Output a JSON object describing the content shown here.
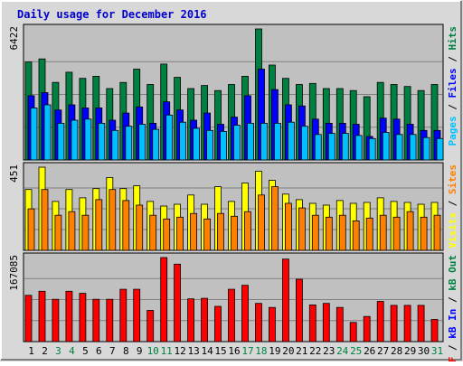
{
  "chart_data": {
    "type": "bar",
    "title": "Daily usage for December 2016",
    "colors": {
      "background": "#d8d8d8",
      "plot": "#c0c0c0",
      "title": "#0000cc",
      "pages": "#00c0ff",
      "files": "#0000ff",
      "hits": "#008040",
      "visits": "#ffff00",
      "sites": "#ff8000",
      "kbytes": "#ff0000",
      "weekend_day": "#008040",
      "weekday": "#000000"
    },
    "days": [
      "1",
      "2",
      "3",
      "4",
      "5",
      "6",
      "7",
      "8",
      "9",
      "10",
      "11",
      "12",
      "13",
      "14",
      "15",
      "16",
      "17",
      "18",
      "19",
      "20",
      "21",
      "22",
      "23",
      "24",
      "25",
      "26",
      "27",
      "28",
      "29",
      "30",
      "31"
    ],
    "weekend_days": [
      "3",
      "4",
      "10",
      "11",
      "17",
      "18",
      "24",
      "25",
      "31"
    ],
    "panels": [
      {
        "id": "hits",
        "ymax": 6422,
        "ymax_label": "6422",
        "legend": [
          {
            "text": "Pages",
            "color": "#00c0ff"
          },
          {
            "text": " / ",
            "color": "#000000"
          },
          {
            "text": "Files",
            "color": "#0000ff"
          },
          {
            "text": " / ",
            "color": "#000000"
          },
          {
            "text": "Hits",
            "color": "#008040"
          }
        ],
        "series": [
          {
            "name": "Hits",
            "color": "#008040",
            "values": [
              4800,
              4950,
              3800,
              4300,
              4000,
              4100,
              3500,
              3800,
              4450,
              3700,
              4700,
              4050,
              3500,
              3650,
              3400,
              3700,
              4100,
              6422,
              4650,
              4000,
              3700,
              3750,
              3500,
              3500,
              3400,
              3100,
              3800,
              3700,
              3600,
              3400,
              3700
            ]
          },
          {
            "name": "Files",
            "color": "#0000ff",
            "values": [
              3150,
              3300,
              2450,
              2700,
              2550,
              2550,
              1950,
              2300,
              2600,
              1800,
              2850,
              2450,
              1950,
              2300,
              1750,
              2100,
              3150,
              4450,
              3450,
              2700,
              2650,
              2000,
              1800,
              1800,
              1750,
              1150,
              2050,
              2000,
              1750,
              1450,
              1450
            ]
          },
          {
            "name": "Pages",
            "color": "#00c0ff",
            "values": [
              2550,
              2700,
              1800,
              1950,
              2000,
              1800,
              1450,
              1650,
              1750,
              1500,
              2200,
              1850,
              1550,
              1450,
              1400,
              1700,
              1800,
              1800,
              1800,
              1850,
              1650,
              1250,
              1300,
              1300,
              1200,
              1050,
              1350,
              1250,
              1250,
              1100,
              1050
            ]
          }
        ]
      },
      {
        "id": "visits",
        "ymax": 451,
        "ymax_label": "451",
        "legend": [
          {
            "text": "Visits",
            "color": "#ffff00"
          },
          {
            "text": " / ",
            "color": "#000000"
          },
          {
            "text": "Sites",
            "color": "#ff8000"
          }
        ],
        "series": [
          {
            "name": "Visits",
            "color": "#ffff00",
            "values": [
              330,
              451,
              265,
              330,
              285,
              335,
              395,
              335,
              350,
              265,
              240,
              250,
              300,
              250,
              345,
              265,
              365,
              429,
              380,
              305,
              275,
              255,
              245,
              270,
              255,
              260,
              285,
              265,
              260,
              250,
              260
            ]
          },
          {
            "name": "Sites",
            "color": "#ff8000",
            "values": [
              225,
              330,
              190,
              210,
              190,
              275,
              330,
              270,
              245,
              190,
              170,
              180,
              200,
              170,
              200,
              185,
              210,
              300,
              345,
              255,
              230,
              190,
              180,
              190,
              160,
              175,
              190,
              180,
              210,
              180,
              190
            ]
          }
        ]
      },
      {
        "id": "kbytes",
        "ymax": 167085,
        "ymax_label": "167085",
        "legend": [
          {
            "text": "kB F",
            "color": "#ff0000"
          },
          {
            "text": " / ",
            "color": "#000000"
          },
          {
            "text": "kB In",
            "color": "#0000ff"
          },
          {
            "text": " / ",
            "color": "#000000"
          },
          {
            "text": "kB Out",
            "color": "#008040"
          }
        ],
        "series": [
          {
            "name": "kB F",
            "color": "#ff0000",
            "values": [
              92000,
              100000,
              84000,
              100000,
              96000,
              84000,
              84000,
              104000,
              104000,
              62000,
              167085,
              154000,
              85000,
              86000,
              70000,
              104000,
              112000,
              76000,
              68000,
              164000,
              124000,
              73000,
              76000,
              68000,
              38000,
              50000,
              80000,
              72000,
              72000,
              72000,
              44000
            ]
          }
        ]
      }
    ]
  }
}
